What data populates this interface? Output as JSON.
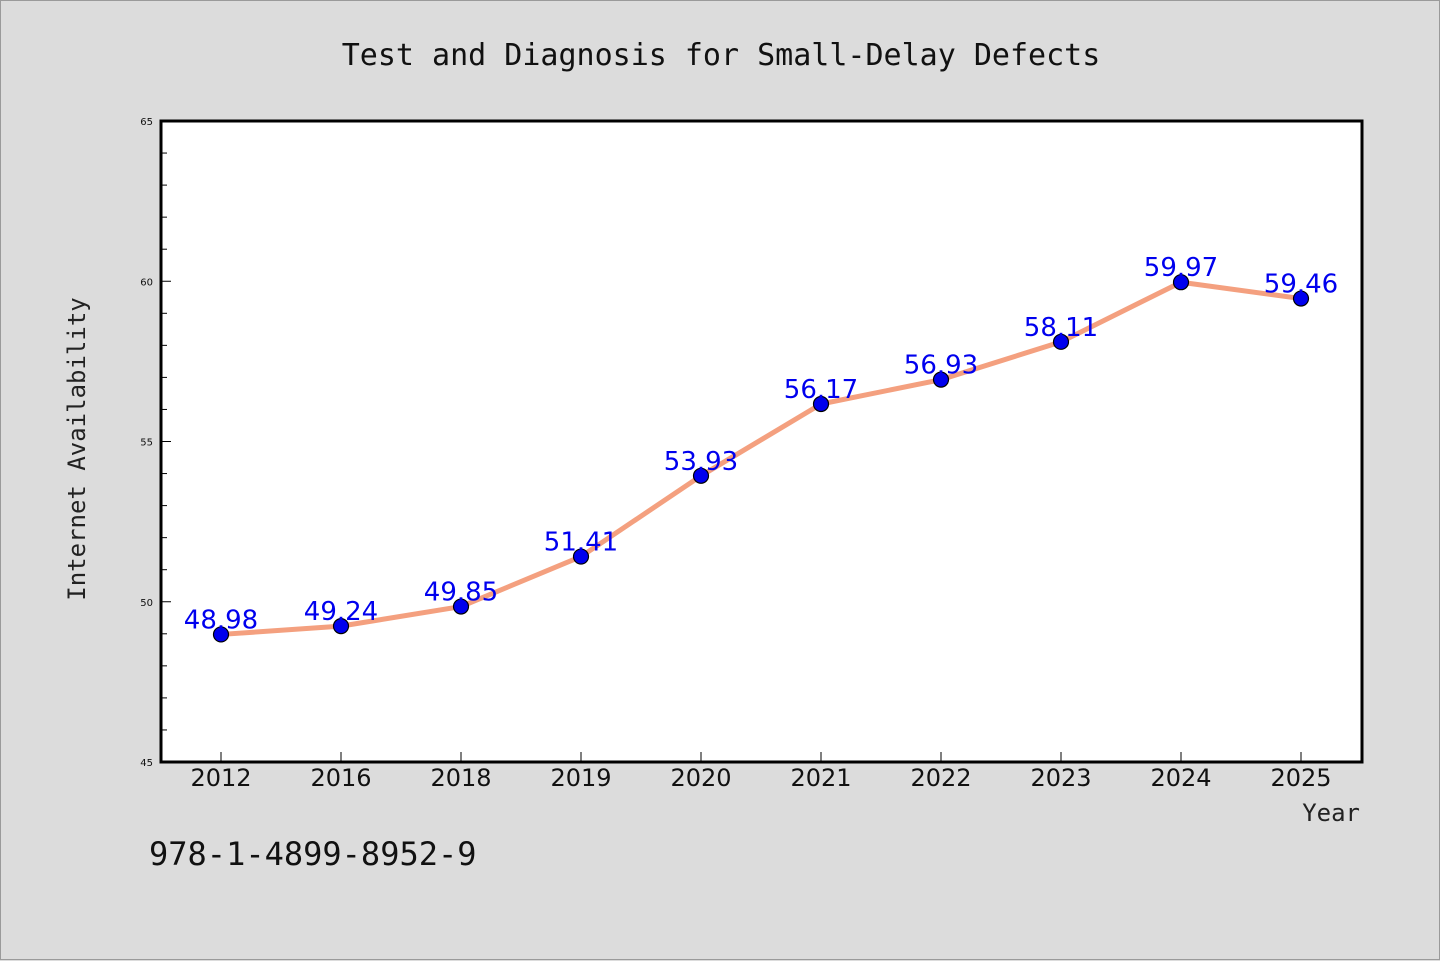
{
  "chart_data": {
    "type": "line",
    "title": "Test and Diagnosis for Small-Delay Defects",
    "xlabel": "Year",
    "ylabel": "Internet Availability",
    "categories": [
      "2012",
      "2016",
      "2018",
      "2019",
      "2020",
      "2021",
      "2022",
      "2023",
      "2024",
      "2025"
    ],
    "series": [
      {
        "values": [
          48.98,
          49.24,
          49.85,
          51.41,
          53.93,
          56.17,
          56.93,
          58.11,
          59.97,
          59.46
        ],
        "labels": [
          "48.98",
          "49.24",
          "49.85",
          "51.41",
          "53.93",
          "56.17",
          "56.93",
          "58.11",
          "59.97",
          "59.46"
        ],
        "line_color": "#f4a07f",
        "marker_color": "#0000ee"
      }
    ],
    "ylim": [
      45,
      65
    ],
    "yticks": [
      "45",
      "50",
      "55",
      "60",
      "65"
    ],
    "grid": false
  },
  "footer_text": "978-1-4899-8952-9",
  "colors": {
    "background": "#dcdcdc",
    "plot_background": "#ffffff"
  }
}
